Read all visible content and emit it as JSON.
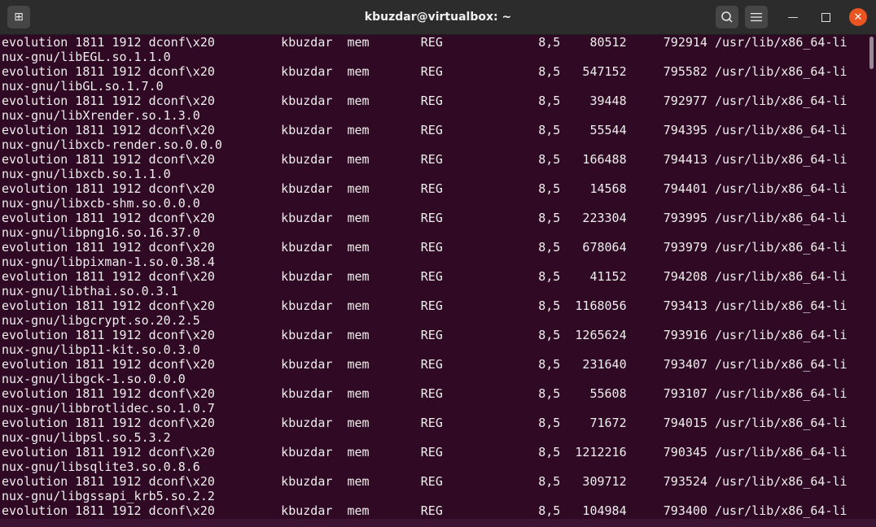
{
  "window": {
    "title": "kbuzdar@virtualbox: ~",
    "new_tab_icon": "new-tab-icon",
    "search_icon": "search-icon",
    "menu_icon": "hamburger-menu-icon"
  },
  "colors": {
    "terminal_bg": "#300a24",
    "titlebar_bg": "#2c2c2c",
    "close": "#e95420",
    "text": "#eeeeec"
  },
  "rows": [
    {
      "command": "evolution",
      "pid": "1811",
      "tid": "1912",
      "task": "dconf\\x20",
      "user": "kbuzdar",
      "fd": "mem",
      "type": "REG",
      "device": "8,5",
      "size": "80512",
      "node": "792914",
      "name": "/usr/lib/x86_64-li",
      "cont": "nux-gnu/libEGL.so.1.1.0"
    },
    {
      "command": "evolution",
      "pid": "1811",
      "tid": "1912",
      "task": "dconf\\x20",
      "user": "kbuzdar",
      "fd": "mem",
      "type": "REG",
      "device": "8,5",
      "size": "547152",
      "node": "795582",
      "name": "/usr/lib/x86_64-li",
      "cont": "nux-gnu/libGL.so.1.7.0"
    },
    {
      "command": "evolution",
      "pid": "1811",
      "tid": "1912",
      "task": "dconf\\x20",
      "user": "kbuzdar",
      "fd": "mem",
      "type": "REG",
      "device": "8,5",
      "size": "39448",
      "node": "792977",
      "name": "/usr/lib/x86_64-li",
      "cont": "nux-gnu/libXrender.so.1.3.0"
    },
    {
      "command": "evolution",
      "pid": "1811",
      "tid": "1912",
      "task": "dconf\\x20",
      "user": "kbuzdar",
      "fd": "mem",
      "type": "REG",
      "device": "8,5",
      "size": "55544",
      "node": "794395",
      "name": "/usr/lib/x86_64-li",
      "cont": "nux-gnu/libxcb-render.so.0.0.0"
    },
    {
      "command": "evolution",
      "pid": "1811",
      "tid": "1912",
      "task": "dconf\\x20",
      "user": "kbuzdar",
      "fd": "mem",
      "type": "REG",
      "device": "8,5",
      "size": "166488",
      "node": "794413",
      "name": "/usr/lib/x86_64-li",
      "cont": "nux-gnu/libxcb.so.1.1.0"
    },
    {
      "command": "evolution",
      "pid": "1811",
      "tid": "1912",
      "task": "dconf\\x20",
      "user": "kbuzdar",
      "fd": "mem",
      "type": "REG",
      "device": "8,5",
      "size": "14568",
      "node": "794401",
      "name": "/usr/lib/x86_64-li",
      "cont": "nux-gnu/libxcb-shm.so.0.0.0"
    },
    {
      "command": "evolution",
      "pid": "1811",
      "tid": "1912",
      "task": "dconf\\x20",
      "user": "kbuzdar",
      "fd": "mem",
      "type": "REG",
      "device": "8,5",
      "size": "223304",
      "node": "793995",
      "name": "/usr/lib/x86_64-li",
      "cont": "nux-gnu/libpng16.so.16.37.0"
    },
    {
      "command": "evolution",
      "pid": "1811",
      "tid": "1912",
      "task": "dconf\\x20",
      "user": "kbuzdar",
      "fd": "mem",
      "type": "REG",
      "device": "8,5",
      "size": "678064",
      "node": "793979",
      "name": "/usr/lib/x86_64-li",
      "cont": "nux-gnu/libpixman-1.so.0.38.4"
    },
    {
      "command": "evolution",
      "pid": "1811",
      "tid": "1912",
      "task": "dconf\\x20",
      "user": "kbuzdar",
      "fd": "mem",
      "type": "REG",
      "device": "8,5",
      "size": "41152",
      "node": "794208",
      "name": "/usr/lib/x86_64-li",
      "cont": "nux-gnu/libthai.so.0.3.1"
    },
    {
      "command": "evolution",
      "pid": "1811",
      "tid": "1912",
      "task": "dconf\\x20",
      "user": "kbuzdar",
      "fd": "mem",
      "type": "REG",
      "device": "8,5",
      "size": "1168056",
      "node": "793413",
      "name": "/usr/lib/x86_64-li",
      "cont": "nux-gnu/libgcrypt.so.20.2.5"
    },
    {
      "command": "evolution",
      "pid": "1811",
      "tid": "1912",
      "task": "dconf\\x20",
      "user": "kbuzdar",
      "fd": "mem",
      "type": "REG",
      "device": "8,5",
      "size": "1265624",
      "node": "793916",
      "name": "/usr/lib/x86_64-li",
      "cont": "nux-gnu/libp11-kit.so.0.3.0"
    },
    {
      "command": "evolution",
      "pid": "1811",
      "tid": "1912",
      "task": "dconf\\x20",
      "user": "kbuzdar",
      "fd": "mem",
      "type": "REG",
      "device": "8,5",
      "size": "231640",
      "node": "793407",
      "name": "/usr/lib/x86_64-li",
      "cont": "nux-gnu/libgck-1.so.0.0.0"
    },
    {
      "command": "evolution",
      "pid": "1811",
      "tid": "1912",
      "task": "dconf\\x20",
      "user": "kbuzdar",
      "fd": "mem",
      "type": "REG",
      "device": "8,5",
      "size": "55608",
      "node": "793107",
      "name": "/usr/lib/x86_64-li",
      "cont": "nux-gnu/libbrotlidec.so.1.0.7"
    },
    {
      "command": "evolution",
      "pid": "1811",
      "tid": "1912",
      "task": "dconf\\x20",
      "user": "kbuzdar",
      "fd": "mem",
      "type": "REG",
      "device": "8,5",
      "size": "71672",
      "node": "794015",
      "name": "/usr/lib/x86_64-li",
      "cont": "nux-gnu/libpsl.so.5.3.2"
    },
    {
      "command": "evolution",
      "pid": "1811",
      "tid": "1912",
      "task": "dconf\\x20",
      "user": "kbuzdar",
      "fd": "mem",
      "type": "REG",
      "device": "8,5",
      "size": "1212216",
      "node": "790345",
      "name": "/usr/lib/x86_64-li",
      "cont": "nux-gnu/libsqlite3.so.0.8.6"
    },
    {
      "command": "evolution",
      "pid": "1811",
      "tid": "1912",
      "task": "dconf\\x20",
      "user": "kbuzdar",
      "fd": "mem",
      "type": "REG",
      "device": "8,5",
      "size": "309712",
      "node": "793524",
      "name": "/usr/lib/x86_64-li",
      "cont": "nux-gnu/libgssapi_krb5.so.2.2"
    },
    {
      "command": "evolution",
      "pid": "1811",
      "tid": "1912",
      "task": "dconf\\x20",
      "user": "kbuzdar",
      "fd": "mem",
      "type": "REG",
      "device": "8,5",
      "size": "104984",
      "node": "793400",
      "name": "/usr/lib/x86_64-li",
      "cont": ""
    }
  ]
}
